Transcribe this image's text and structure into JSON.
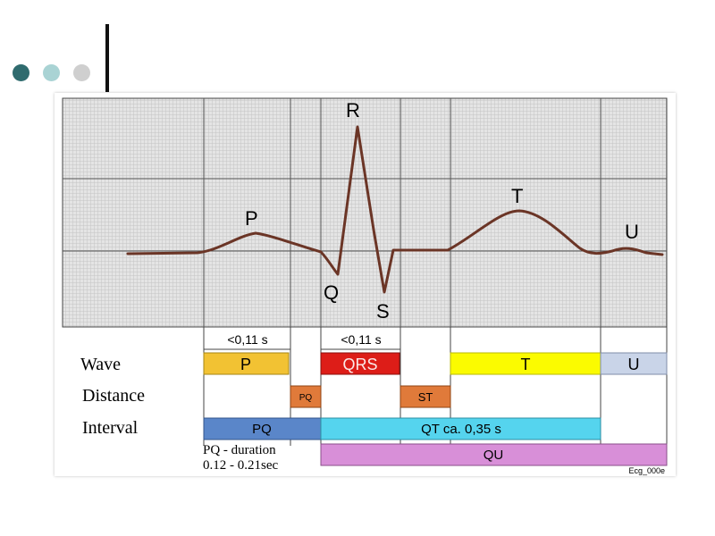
{
  "slide": {
    "bullet_colors": [
      "#2f6b6e",
      "#a9d3d4",
      "#cfcfcf"
    ]
  },
  "diagram": {
    "peak_labels": {
      "P": "P",
      "Q": "Q",
      "R": "R",
      "S": "S",
      "T": "T",
      "U": "U"
    },
    "row_labels": {
      "wave": "Wave",
      "distance": "Distance",
      "interval": "Interval"
    },
    "durations": {
      "pr": "<0,11 s",
      "qrs": "<0,11 s"
    },
    "wave_boxes": {
      "p": "P",
      "qrs": "QRS",
      "t": "T",
      "u": "U"
    },
    "distance_boxes": {
      "pq": "PQ",
      "st": "ST"
    },
    "interval_boxes": {
      "pq": "PQ",
      "qt": "QT ca. 0,35 s",
      "qu": "QU"
    },
    "pq_note": {
      "line1": "PQ - duration",
      "line2": "0.12 - 0.21sec"
    },
    "credit": "Ecg_000e",
    "colors": {
      "trace": "#6b3526",
      "p_box": "#f2c233",
      "qrs_box": "#dd1d18",
      "t_box": "#fbfb00",
      "u_box": "#c9d4e8",
      "pq_distance": "#e07a3a",
      "st_distance": "#e07a3a",
      "pq_interval": "#5a86c9",
      "qt_interval": "#55d4ee",
      "qu_interval": "#d88fd8"
    }
  }
}
